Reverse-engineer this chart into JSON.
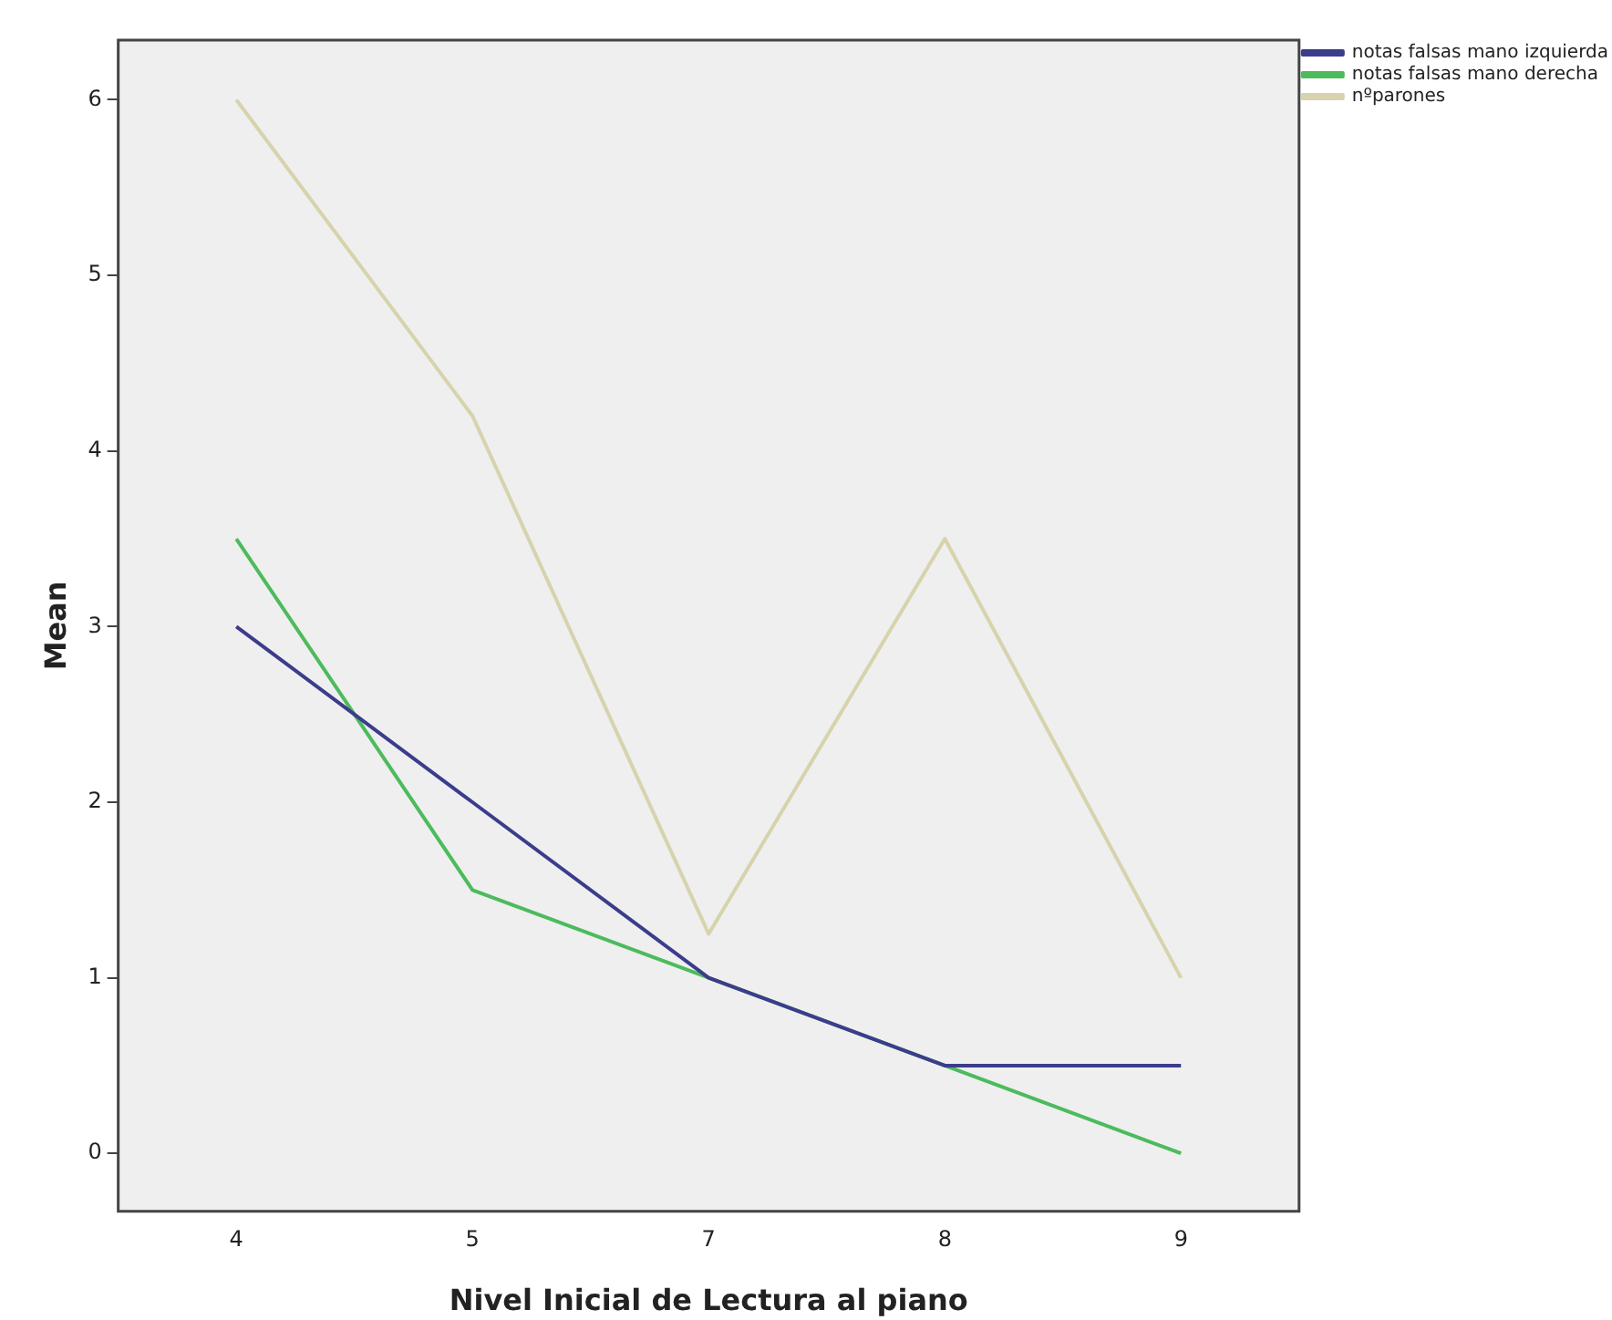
{
  "chart_data": {
    "type": "line",
    "xlabel": "Nivel Inicial de Lectura al piano",
    "ylabel": "Mean",
    "categories": [
      "4",
      "5",
      "7",
      "8",
      "9"
    ],
    "series": [
      {
        "name": "notas falsas mano izquierda",
        "color": "#3c3c8c",
        "values": [
          3,
          2,
          1,
          0.5,
          0.5
        ]
      },
      {
        "name": "notas falsas mano derecha",
        "color": "#4cbb5c",
        "values": [
          3.5,
          1.5,
          1,
          0.5,
          0
        ]
      },
      {
        "name": "nºparones",
        "color": "#d6d3ad",
        "values": [
          6,
          4.2,
          1.25,
          3.5,
          1
        ]
      }
    ],
    "ylim": [
      -0.33,
      6.34
    ],
    "yticks": [
      0,
      1,
      2,
      3,
      4,
      5,
      6
    ],
    "grid": false,
    "legend": "top right",
    "marker": "none",
    "line_style": "solid"
  }
}
